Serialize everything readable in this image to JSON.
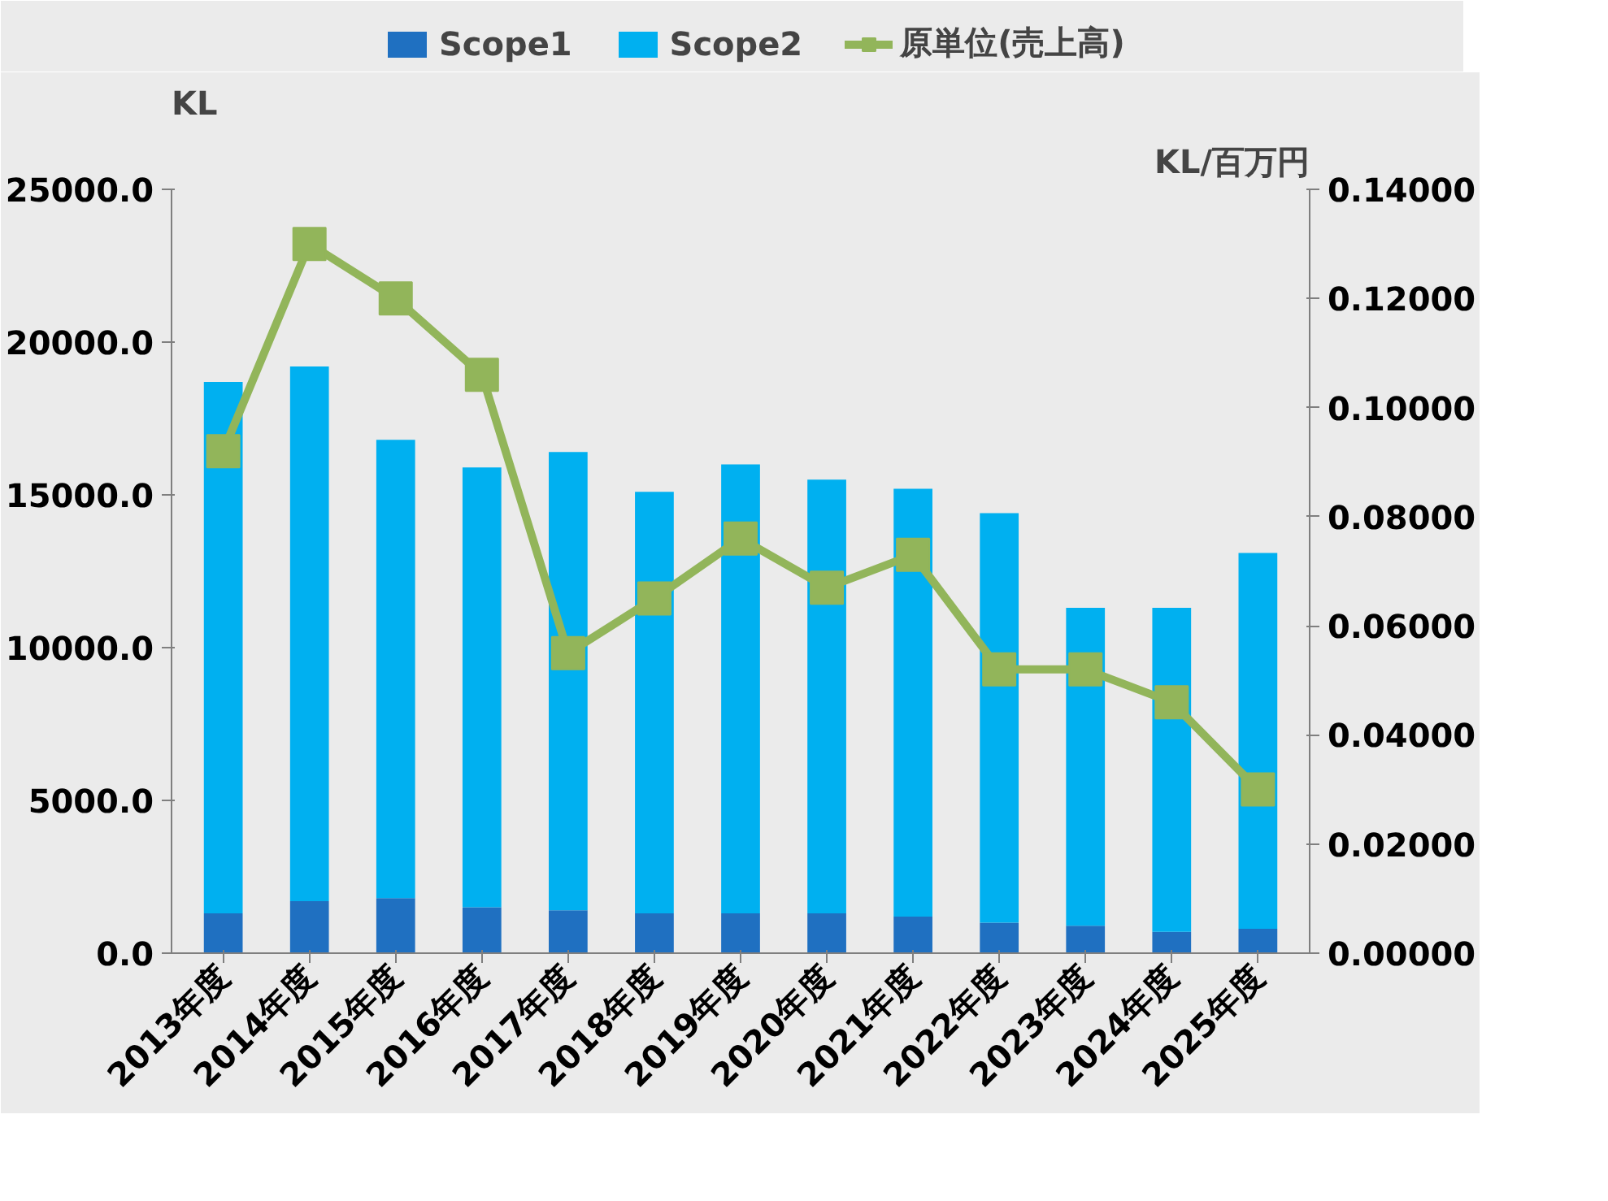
{
  "chart_data": {
    "type": "bar",
    "stacked": true,
    "ylabel": "KL",
    "y2label": "KL/百万円",
    "categories": [
      "2013年度",
      "2014年度",
      "2015年度",
      "2016年度",
      "2017年度",
      "2018年度",
      "2019年度",
      "2020年度",
      "2021年度",
      "2022年度",
      "2023年度",
      "2024年度",
      "2025年度"
    ],
    "series": [
      {
        "name": "Scope1",
        "color": "#1f70c1",
        "values": [
          1300,
          1700,
          1800,
          1500,
          1400,
          1300,
          1300,
          1300,
          1200,
          1000,
          900,
          700,
          800
        ]
      },
      {
        "name": "Scope2",
        "color": "#00b0f0",
        "values": [
          17400,
          17500,
          15000,
          14400,
          15000,
          13800,
          14700,
          14200,
          14000,
          13400,
          10400,
          10600,
          12300
        ]
      },
      {
        "name": "原単位(売上高)",
        "type": "line",
        "axis": "y2",
        "color": "#92b55a",
        "marker": "square",
        "values": [
          0.092,
          0.13,
          0.12,
          0.106,
          0.055,
          0.065,
          0.076,
          0.067,
          0.073,
          0.052,
          0.052,
          0.046,
          0.03
        ]
      }
    ],
    "ylim": [
      0,
      25000
    ],
    "yticks": [
      {
        "value": 0,
        "label": "0.0"
      },
      {
        "value": 5000,
        "label": "5000.0"
      },
      {
        "value": 10000,
        "label": "10000.0"
      },
      {
        "value": 15000,
        "label": "15000.0"
      },
      {
        "value": 20000,
        "label": "20000.0"
      },
      {
        "value": 25000,
        "label": "25000.0"
      }
    ],
    "y2lim": [
      0,
      0.14
    ],
    "y2ticks": [
      {
        "value": 0,
        "label": "0.00000"
      },
      {
        "value": 0.02,
        "label": "0.02000"
      },
      {
        "value": 0.04,
        "label": "0.04000"
      },
      {
        "value": 0.06,
        "label": "0.06000"
      },
      {
        "value": 0.08,
        "label": "0.08000"
      },
      {
        "value": 0.1,
        "label": "0.10000"
      },
      {
        "value": 0.12,
        "label": "0.12000"
      },
      {
        "value": 0.14,
        "label": "0.14000"
      }
    ],
    "grid": false,
    "legend": "top"
  }
}
